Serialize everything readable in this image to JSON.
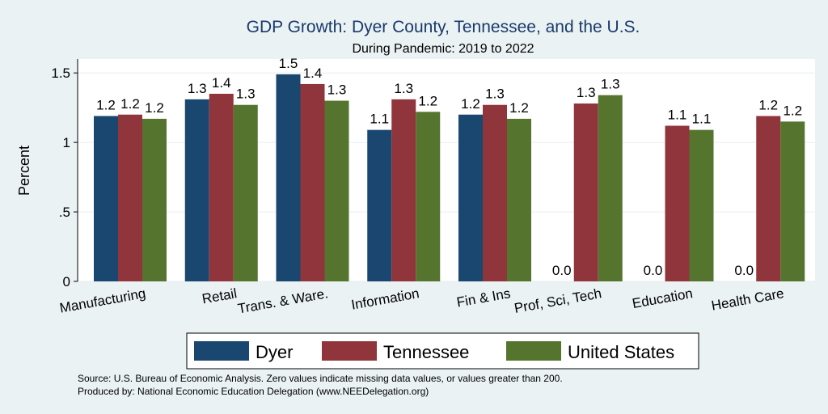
{
  "chart_data": {
    "type": "bar",
    "title": "GDP Growth: Dyer County, Tennessee, and the U.S.",
    "subtitle": "During Pandemic: 2019 to 2022",
    "ylabel": "Percent",
    "xlabel": "",
    "ylim": [
      0,
      1.6
    ],
    "yticks": [
      0,
      0.5,
      1,
      1.5
    ],
    "ytick_labels": [
      "0",
      ".5",
      "1",
      "1.5"
    ],
    "grid": true,
    "legend_position": "bottom",
    "categories": [
      "Manufacturing",
      "Retail",
      "Trans. & Ware.",
      "Information",
      "Fin & Ins",
      "Prof, Sci, Tech",
      "Education",
      "Health Care"
    ],
    "series": [
      {
        "name": "Dyer",
        "color": "#1a476f",
        "values": [
          1.19,
          1.31,
          1.49,
          1.09,
          1.2,
          0,
          0,
          0
        ],
        "labels": [
          "1.2",
          "1.3",
          "1.5",
          "1.1",
          "1.2",
          "0.0",
          "0.0",
          "0.0"
        ]
      },
      {
        "name": "Tennessee",
        "color": "#90353b",
        "values": [
          1.2,
          1.35,
          1.42,
          1.31,
          1.27,
          1.28,
          1.12,
          1.19
        ],
        "labels": [
          "1.2",
          "1.4",
          "1.4",
          "1.3",
          "1.3",
          "1.3",
          "1.1",
          "1.2"
        ]
      },
      {
        "name": "United States",
        "color": "#55752f",
        "values": [
          1.17,
          1.27,
          1.3,
          1.22,
          1.17,
          1.34,
          1.09,
          1.15
        ],
        "labels": [
          "1.2",
          "1.3",
          "1.3",
          "1.2",
          "1.2",
          "1.3",
          "1.1",
          "1.2"
        ]
      }
    ],
    "notes": [
      "Source: U.S. Bureau of Economic Analysis. Zero values indicate missing data values, or values greater than 200.",
      "Produced by: National Economic Education Delegation (www.NEEDelegation.org)"
    ]
  }
}
